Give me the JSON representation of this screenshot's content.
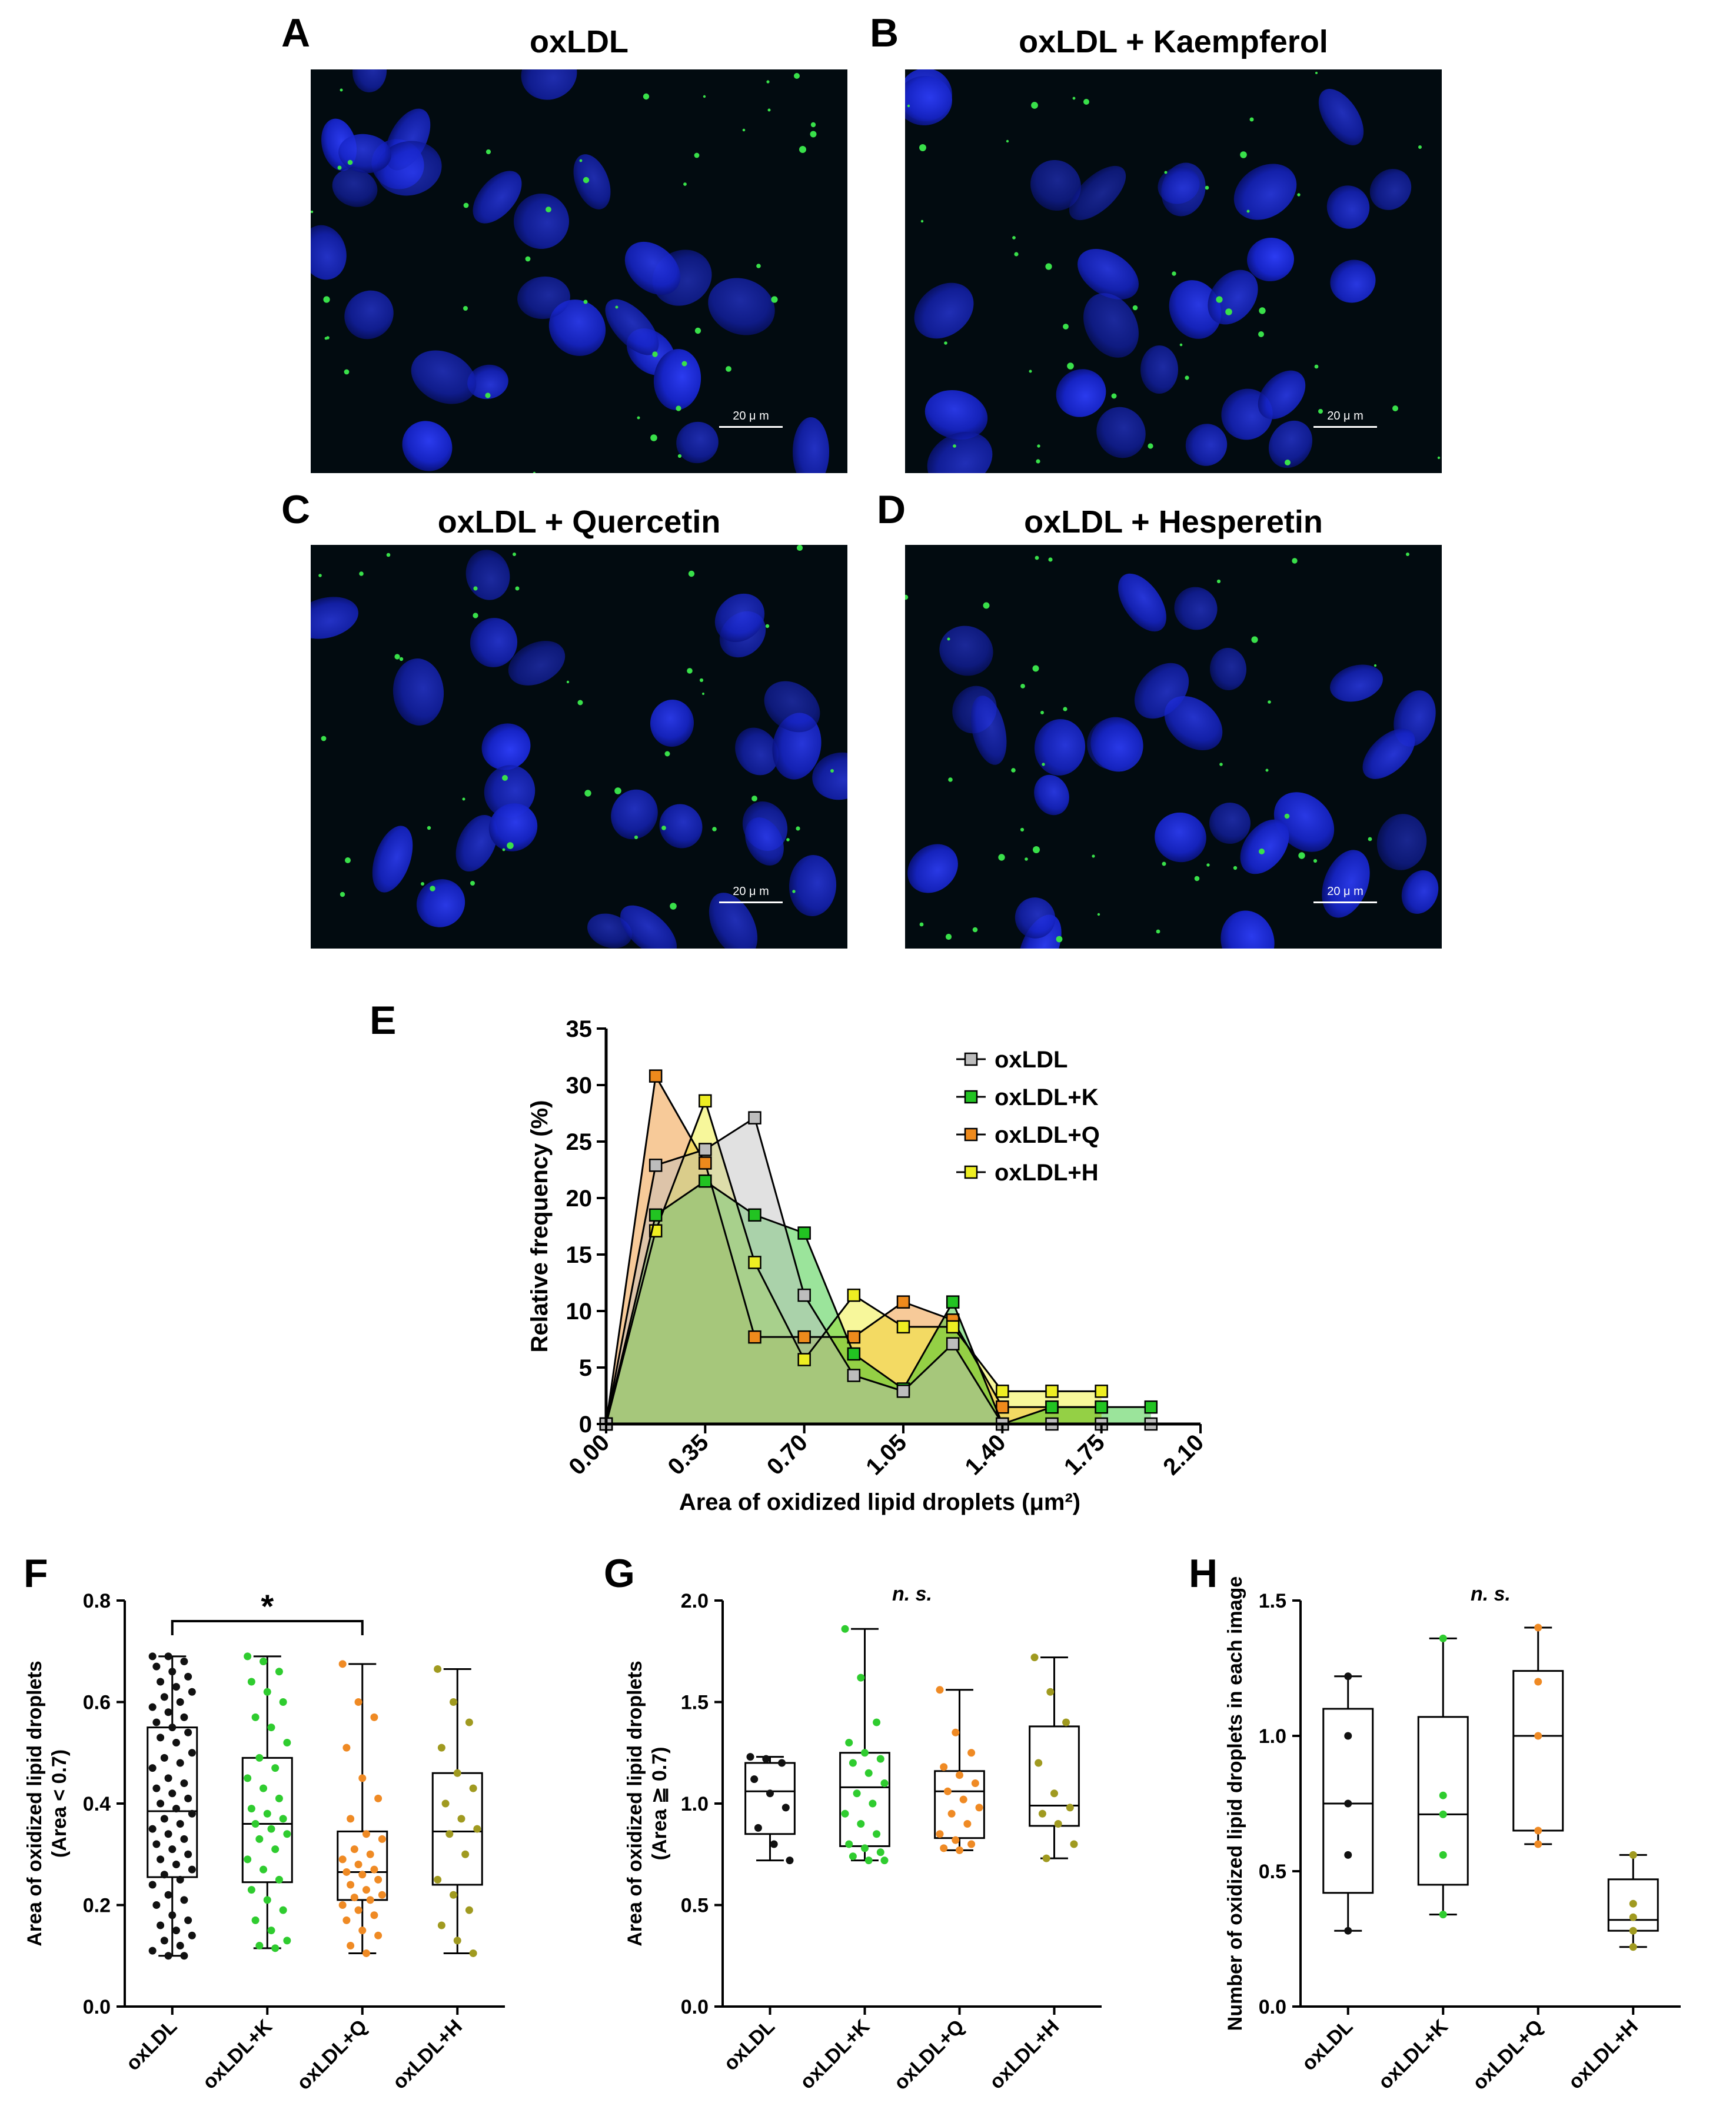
{
  "panels": {
    "A": {
      "letter": "A",
      "title": "oxLDL",
      "scale_bar": "20 μ m"
    },
    "B": {
      "letter": "B",
      "title": "oxLDL + Kaempferol",
      "scale_bar": "20 μ m"
    },
    "C": {
      "letter": "C",
      "title": "oxLDL + Quercetin",
      "scale_bar": "20 μ m"
    },
    "D": {
      "letter": "D",
      "title": "oxLDL + Hesperetin",
      "scale_bar": "20 μ m"
    },
    "E": {
      "letter": "E"
    },
    "F": {
      "letter": "F"
    },
    "G": {
      "letter": "G"
    },
    "H": {
      "letter": "H"
    }
  },
  "colors": {
    "oxLDL": "#bdbdbd",
    "oxLDL+K": "#22c322",
    "oxLDL+Q": "#ee8a1c",
    "oxLDL+H": "#eeee22",
    "F_oxLDL": "#111111",
    "F_oxLDL+K": "#2fcc2f",
    "F_oxLDL+Q": "#ef8a24",
    "F_oxLDL+H": "#a09a20",
    "nucleus": "#1a2bd8",
    "droplet": "#39e04a"
  },
  "chart_data": [
    {
      "id": "E",
      "type": "area",
      "xlabel": "Area of oxidized lipid droplets (μm²)",
      "ylabel": "Relative frequency (%)",
      "xlim": [
        0,
        2.1
      ],
      "ylim": [
        0,
        35
      ],
      "xticks": [
        "0.00",
        "0.35",
        "0.70",
        "1.05",
        "1.40",
        "1.75",
        "2.10"
      ],
      "yticks": [
        "0",
        "5",
        "10",
        "15",
        "20",
        "25",
        "30",
        "35"
      ],
      "legend_position": "top-right",
      "series": [
        {
          "name": "oxLDL",
          "x": [
            0,
            0.175,
            0.35,
            0.525,
            0.7,
            0.875,
            1.05,
            1.225,
            1.4,
            1.575,
            1.75,
            1.925
          ],
          "y": [
            0,
            22.9,
            24.3,
            27.1,
            11.4,
            4.3,
            2.9,
            7.1,
            0,
            0,
            0,
            0
          ]
        },
        {
          "name": "oxLDL+K",
          "x": [
            0,
            0.175,
            0.35,
            0.525,
            0.7,
            0.875,
            1.05,
            1.225,
            1.4,
            1.575,
            1.75,
            1.925
          ],
          "y": [
            0,
            18.5,
            21.5,
            18.5,
            16.9,
            6.2,
            3.1,
            10.8,
            0,
            1.5,
            1.5,
            1.5
          ]
        },
        {
          "name": "oxLDL+Q",
          "x": [
            0,
            0.175,
            0.35,
            0.525,
            0.7,
            0.875,
            1.05,
            1.225,
            1.4,
            1.575,
            1.75
          ],
          "y": [
            0,
            30.8,
            23.1,
            7.7,
            7.7,
            7.7,
            10.8,
            9.2,
            1.5,
            1.5,
            1.5
          ]
        },
        {
          "name": "oxLDL+H",
          "x": [
            0,
            0.175,
            0.35,
            0.525,
            0.7,
            0.875,
            1.05,
            1.225,
            1.4,
            1.575,
            1.75
          ],
          "y": [
            0,
            17.1,
            28.6,
            14.3,
            5.7,
            11.4,
            8.6,
            8.6,
            2.9,
            2.9,
            2.9
          ]
        }
      ]
    },
    {
      "id": "F",
      "type": "scatter",
      "ylabel": "Area of oxidized lipid droplets",
      "ylabel2": "(Area < 0.7)",
      "ylim": [
        0,
        0.8
      ],
      "yticks": [
        "0.0",
        "0.2",
        "0.4",
        "0.6",
        "0.8"
      ],
      "categories": [
        "oxLDL",
        "oxLDL+K",
        "oxLDL+Q",
        "oxLDL+H"
      ],
      "significance": "*",
      "boxes": [
        {
          "min": 0.1,
          "q1": 0.255,
          "median": 0.385,
          "q3": 0.55,
          "max": 0.69
        },
        {
          "min": 0.115,
          "q1": 0.245,
          "median": 0.36,
          "q3": 0.49,
          "max": 0.69
        },
        {
          "min": 0.105,
          "q1": 0.21,
          "median": 0.265,
          "q3": 0.345,
          "max": 0.675
        },
        {
          "min": 0.105,
          "q1": 0.24,
          "median": 0.345,
          "q3": 0.46,
          "max": 0.665
        }
      ],
      "points": [
        [
          0.69,
          0.69,
          0.68,
          0.67,
          0.66,
          0.65,
          0.64,
          0.63,
          0.62,
          0.61,
          0.6,
          0.59,
          0.58,
          0.57,
          0.56,
          0.55,
          0.54,
          0.53,
          0.52,
          0.5,
          0.49,
          0.48,
          0.47,
          0.45,
          0.44,
          0.43,
          0.42,
          0.41,
          0.4,
          0.39,
          0.38,
          0.37,
          0.36,
          0.35,
          0.34,
          0.33,
          0.32,
          0.31,
          0.3,
          0.29,
          0.28,
          0.27,
          0.26,
          0.25,
          0.24,
          0.22,
          0.21,
          0.2,
          0.18,
          0.17,
          0.16,
          0.15,
          0.14,
          0.13,
          0.12,
          0.11,
          0.1,
          0.1
        ],
        [
          0.69,
          0.68,
          0.66,
          0.64,
          0.62,
          0.6,
          0.57,
          0.55,
          0.52,
          0.49,
          0.47,
          0.45,
          0.43,
          0.41,
          0.39,
          0.38,
          0.37,
          0.36,
          0.35,
          0.34,
          0.33,
          0.31,
          0.29,
          0.27,
          0.25,
          0.23,
          0.21,
          0.19,
          0.17,
          0.15,
          0.13,
          0.12,
          0.115
        ],
        [
          0.675,
          0.6,
          0.57,
          0.51,
          0.45,
          0.41,
          0.37,
          0.34,
          0.33,
          0.31,
          0.3,
          0.29,
          0.28,
          0.27,
          0.265,
          0.26,
          0.25,
          0.24,
          0.23,
          0.22,
          0.215,
          0.21,
          0.2,
          0.19,
          0.18,
          0.17,
          0.15,
          0.14,
          0.12,
          0.105
        ],
        [
          0.665,
          0.6,
          0.56,
          0.51,
          0.46,
          0.43,
          0.4,
          0.37,
          0.35,
          0.34,
          0.3,
          0.25,
          0.22,
          0.19,
          0.16,
          0.13,
          0.105
        ]
      ]
    },
    {
      "id": "G",
      "type": "scatter",
      "ylabel": "Area of oxidized lipid droplets",
      "ylabel2": "(Area ≧ 0.7)",
      "ylim": [
        0,
        2.0
      ],
      "yticks": [
        "0.0",
        "0.5",
        "1.0",
        "1.5",
        "2.0"
      ],
      "categories": [
        "oxLDL",
        "oxLDL+K",
        "oxLDL+Q",
        "oxLDL+H"
      ],
      "significance": "n. s.",
      "boxes": [
        {
          "min": 0.72,
          "q1": 0.85,
          "median": 1.06,
          "q3": 1.2,
          "max": 1.23
        },
        {
          "min": 0.72,
          "q1": 0.79,
          "median": 1.08,
          "q3": 1.25,
          "max": 1.86
        },
        {
          "min": 0.77,
          "q1": 0.83,
          "median": 1.06,
          "q3": 1.16,
          "max": 1.56
        },
        {
          "min": 0.73,
          "q1": 0.89,
          "median": 0.99,
          "q3": 1.38,
          "max": 1.72
        }
      ],
      "points": [
        [
          1.23,
          1.22,
          1.2,
          1.12,
          1.05,
          0.98,
          0.88,
          0.8,
          0.72
        ],
        [
          1.86,
          1.62,
          1.4,
          1.3,
          1.25,
          1.22,
          1.2,
          1.15,
          1.1,
          1.05,
          1.0,
          0.95,
          0.9,
          0.85,
          0.8,
          0.78,
          0.76,
          0.74,
          0.72,
          0.72
        ],
        [
          1.56,
          1.35,
          1.25,
          1.18,
          1.14,
          1.1,
          1.06,
          1.02,
          0.98,
          0.95,
          0.9,
          0.85,
          0.82,
          0.8,
          0.78,
          0.77
        ],
        [
          1.72,
          1.55,
          1.4,
          1.2,
          1.05,
          0.98,
          0.95,
          0.9,
          0.8,
          0.73
        ]
      ]
    },
    {
      "id": "H",
      "type": "scatter",
      "ylabel": "Number of oxidized lipid droplets in each image",
      "ylim": [
        0,
        1.5
      ],
      "yticks": [
        "0.0",
        "0.5",
        "1.0",
        "1.5"
      ],
      "categories": [
        "oxLDL",
        "oxLDL+K",
        "oxLDL+Q",
        "oxLDL+H"
      ],
      "significance": "n. s.",
      "boxes": [
        {
          "min": 0.28,
          "q1": 0.42,
          "median": 0.75,
          "q3": 1.1,
          "max": 1.22
        },
        {
          "min": 0.34,
          "q1": 0.45,
          "median": 0.71,
          "q3": 1.07,
          "max": 1.36
        },
        {
          "min": 0.6,
          "q1": 0.65,
          "median": 1.0,
          "q3": 1.24,
          "max": 1.4
        },
        {
          "min": 0.22,
          "q1": 0.28,
          "median": 0.32,
          "q3": 0.47,
          "max": 0.56
        }
      ],
      "points": [
        [
          1.22,
          1.0,
          0.75,
          0.56,
          0.28
        ],
        [
          1.36,
          0.78,
          0.71,
          0.56,
          0.34
        ],
        [
          1.4,
          1.2,
          1.0,
          0.65,
          0.6
        ],
        [
          0.56,
          0.38,
          0.33,
          0.28,
          0.22
        ]
      ]
    }
  ]
}
